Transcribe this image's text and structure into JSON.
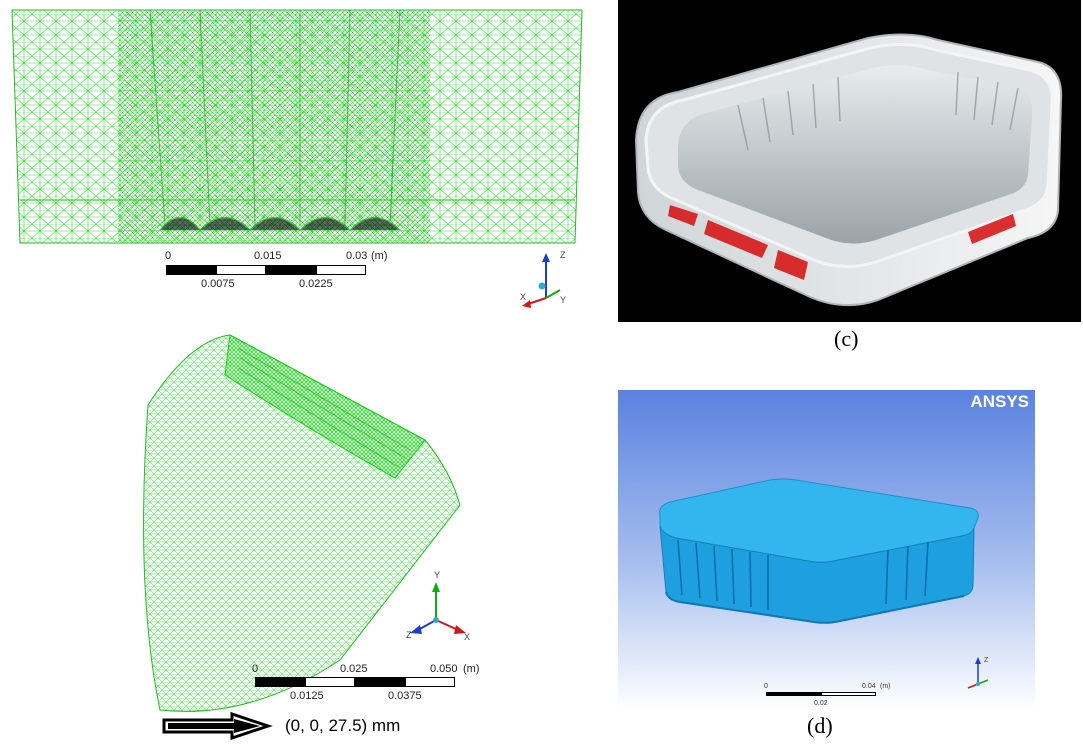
{
  "panels": {
    "mesh_front": {
      "scale_top_labels": [
        "0",
        "0.015",
        "0.03"
      ],
      "scale_unit": "(m)",
      "scale_bottom_labels": [
        "0.0075",
        "0.0225"
      ],
      "triad_labels": [
        "Z",
        "X",
        "Y"
      ],
      "mesh_color": "#22dd22"
    },
    "photo": {
      "caption": "(c)"
    },
    "mesh_iso": {
      "scale_top_labels": [
        "0",
        "0.025",
        "0.050"
      ],
      "scale_unit": "(m)",
      "scale_bottom_labels": [
        "0.0125",
        "0.0375"
      ],
      "triad_labels": [
        "Y",
        "Z",
        "X"
      ],
      "arrow_label": "(0, 0, 27.5) mm",
      "mesh_color": "#22dd22"
    },
    "ansys": {
      "logo": "ANSYS",
      "caption": "(d)",
      "scale_top_labels": [
        "0",
        "0.04"
      ],
      "scale_unit": "(m)",
      "scale_bottom_labels": [
        "0.02"
      ],
      "triad_labels": [
        "Z"
      ],
      "model_color": "#1fa6e6"
    }
  }
}
